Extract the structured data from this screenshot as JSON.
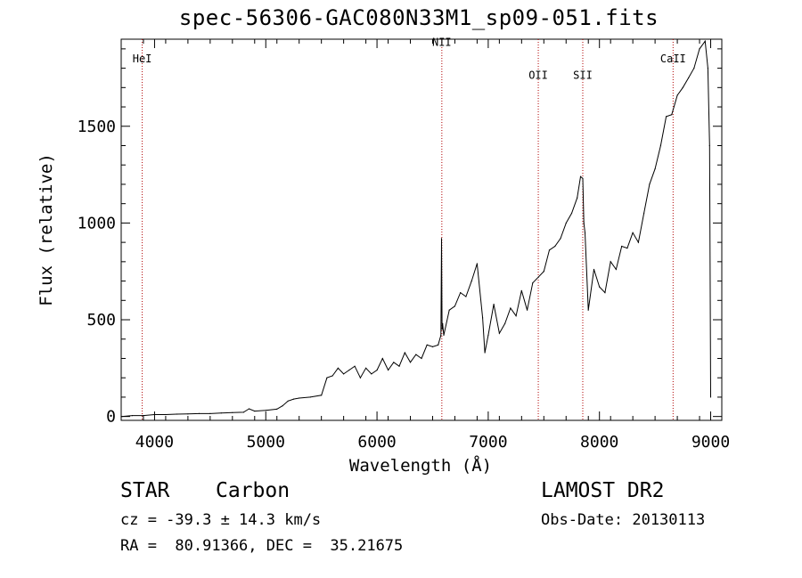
{
  "chart_data": {
    "type": "line",
    "title": "spec-56306-GAC080N33M1_sp09-051.fits",
    "xlabel": "Wavelength (Å)",
    "ylabel": "Flux (relative)",
    "xlim": [
      3700,
      9100
    ],
    "ylim": [
      -20,
      1950
    ],
    "xticks": [
      4000,
      5000,
      6000,
      7000,
      8000,
      9000
    ],
    "yticks": [
      0,
      500,
      1000,
      1500
    ],
    "xtick_labels": [
      "4000",
      "5000",
      "6000",
      "7000",
      "8000",
      "9000"
    ],
    "ytick_labels": [
      "0",
      "500",
      "1000",
      "1500"
    ],
    "lines": [
      {
        "label": "HeI",
        "x": 3889,
        "label_y": 1830
      },
      {
        "label": "NII",
        "x": 6583,
        "label_y": 1915
      },
      {
        "label": "OII",
        "x": 7450,
        "label_y": 1745
      },
      {
        "label": "SII",
        "x": 7850,
        "label_y": 1745
      },
      {
        "label": "CaII",
        "x": 8662,
        "label_y": 1830
      }
    ],
    "series": [
      {
        "x": [
          3700,
          3800,
          3900,
          4000,
          4100,
          4200,
          4300,
          4400,
          4500,
          4600,
          4700,
          4800,
          4850,
          4900,
          5000,
          5100,
          5150,
          5200,
          5250,
          5300,
          5400,
          5500,
          5550,
          5600,
          5650,
          5700,
          5750,
          5800,
          5850,
          5900,
          5950,
          6000,
          6050,
          6100,
          6150,
          6200,
          6250,
          6300,
          6350,
          6400,
          6450,
          6500,
          6550,
          6575,
          6580,
          6585,
          6590,
          6600,
          6650,
          6700,
          6750,
          6800,
          6850,
          6900,
          6950,
          6970,
          7000,
          7050,
          7100,
          7150,
          7200,
          7250,
          7300,
          7350,
          7400,
          7450,
          7500,
          7550,
          7600,
          7650,
          7700,
          7750,
          7800,
          7830,
          7850,
          7860,
          7870,
          7900,
          7950,
          8000,
          8050,
          8100,
          8150,
          8200,
          8250,
          8300,
          8350,
          8400,
          8450,
          8500,
          8550,
          8600,
          8650,
          8700,
          8750,
          8800,
          8850,
          8900,
          8950,
          8975,
          8990,
          9000
        ],
        "y": [
          0,
          5,
          5,
          10,
          10,
          12,
          13,
          15,
          15,
          18,
          20,
          22,
          40,
          28,
          32,
          38,
          55,
          80,
          90,
          95,
          100,
          110,
          200,
          210,
          250,
          220,
          240,
          260,
          200,
          250,
          220,
          240,
          300,
          240,
          280,
          260,
          330,
          280,
          320,
          300,
          370,
          360,
          370,
          420,
          920,
          450,
          480,
          420,
          550,
          570,
          640,
          620,
          700,
          790,
          510,
          330,
          420,
          580,
          430,
          480,
          560,
          520,
          650,
          550,
          690,
          720,
          750,
          860,
          880,
          920,
          1000,
          1050,
          1130,
          1240,
          1230,
          1000,
          950,
          550,
          760,
          670,
          640,
          800,
          760,
          880,
          870,
          950,
          900,
          1050,
          1200,
          1280,
          1400,
          1550,
          1560,
          1660,
          1700,
          1750,
          1800,
          1900,
          1940,
          1800,
          1400,
          100
        ]
      }
    ]
  },
  "info": {
    "object_type": "STAR",
    "subclass": "Carbon",
    "survey": "LAMOST DR2",
    "redshift": "cz = -39.3 ± 14.3 km/s",
    "obs_date": "Obs-Date: 20130113",
    "coords": "RA =  80.91366, DEC =  35.21675"
  }
}
